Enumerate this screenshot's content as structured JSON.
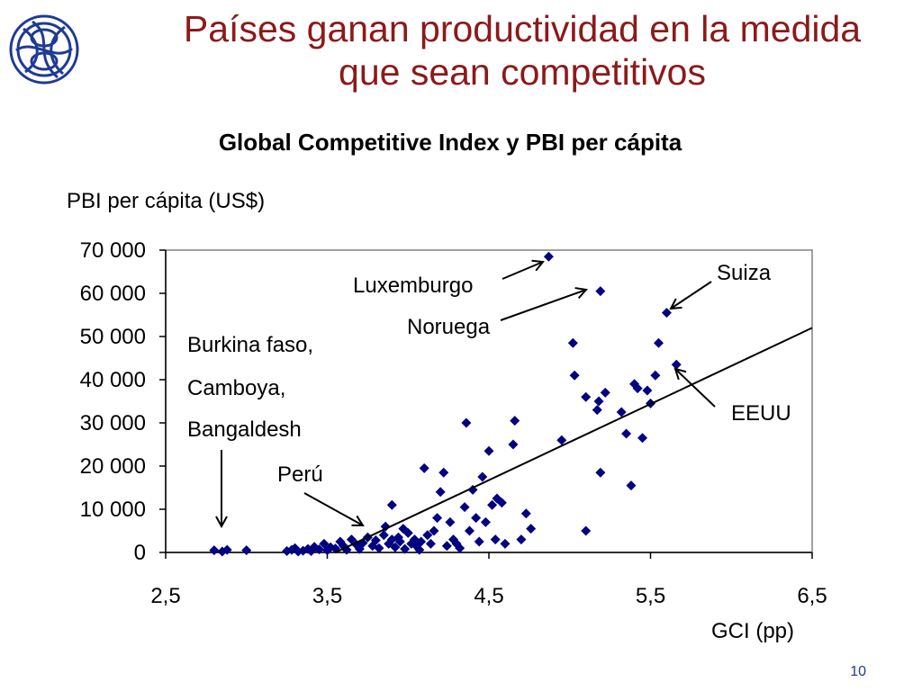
{
  "slide": {
    "title_line1": "Países ganan productividad en la medida",
    "title_line2": "que sean competitivos",
    "page_number": "10"
  },
  "logo": {
    "icon": "bank-monogram-logo"
  },
  "chart_data": {
    "type": "scatter",
    "title": "Global Competitive Index y PBI per cápita",
    "ylabel": "PBI per cápita (US$)",
    "xlabel": "GCI (pp)",
    "xlim": [
      2.5,
      6.5
    ],
    "ylim": [
      0,
      70000
    ],
    "x_ticks": [
      "2,5",
      "3,5",
      "4,5",
      "5,5",
      "6,5"
    ],
    "y_ticks": [
      "0",
      "10 000",
      "20 000",
      "30 000",
      "40 000",
      "50 000",
      "60 000",
      "70 000"
    ],
    "marker_color": "#000080",
    "trendline": {
      "start": [
        3.55,
        0
      ],
      "end": [
        6.5,
        52000
      ]
    },
    "annotations": {
      "burkina": [
        "Burkina faso,",
        "Camboya,",
        "Bangaldesh"
      ],
      "peru": "Perú",
      "luxemburgo": "Luxemburgo",
      "noruega": "Noruega",
      "suiza": "Suiza",
      "eeuu": "EEUU"
    },
    "points": [
      [
        2.8,
        500
      ],
      [
        2.85,
        200
      ],
      [
        2.88,
        600
      ],
      [
        3.0,
        500
      ],
      [
        3.25,
        300
      ],
      [
        3.28,
        600
      ],
      [
        3.3,
        1000
      ],
      [
        3.32,
        200
      ],
      [
        3.35,
        400
      ],
      [
        3.38,
        800
      ],
      [
        3.4,
        300
      ],
      [
        3.42,
        1300
      ],
      [
        3.45,
        700
      ],
      [
        3.48,
        2000
      ],
      [
        3.5,
        500
      ],
      [
        3.52,
        1200
      ],
      [
        3.55,
        900
      ],
      [
        3.58,
        2500
      ],
      [
        3.6,
        1500
      ],
      [
        3.62,
        600
      ],
      [
        3.65,
        3000
      ],
      [
        3.68,
        1800
      ],
      [
        3.7,
        800
      ],
      [
        3.72,
        2200
      ],
      [
        3.75,
        3500
      ],
      [
        3.78,
        1500
      ],
      [
        3.8,
        2800
      ],
      [
        3.82,
        1000
      ],
      [
        3.85,
        4000
      ],
      [
        3.86,
        6000
      ],
      [
        3.88,
        2000
      ],
      [
        3.9,
        11000
      ],
      [
        3.9,
        3000
      ],
      [
        3.92,
        1200
      ],
      [
        3.94,
        3500
      ],
      [
        3.95,
        2500
      ],
      [
        3.97,
        5500
      ],
      [
        3.98,
        800
      ],
      [
        4.0,
        4500
      ],
      [
        4.02,
        2000
      ],
      [
        4.04,
        3000
      ],
      [
        4.05,
        1500
      ],
      [
        4.07,
        600
      ],
      [
        4.08,
        2500
      ],
      [
        4.1,
        19500
      ],
      [
        4.12,
        4000
      ],
      [
        4.14,
        2000
      ],
      [
        4.16,
        5000
      ],
      [
        4.18,
        8000
      ],
      [
        4.2,
        14000
      ],
      [
        4.22,
        18500
      ],
      [
        4.24,
        1500
      ],
      [
        4.26,
        7000
      ],
      [
        4.28,
        3000
      ],
      [
        4.3,
        2000
      ],
      [
        4.32,
        1000
      ],
      [
        4.35,
        10500
      ],
      [
        4.36,
        30000
      ],
      [
        4.38,
        5000
      ],
      [
        4.4,
        14500
      ],
      [
        4.42,
        8000
      ],
      [
        4.44,
        2500
      ],
      [
        4.46,
        17500
      ],
      [
        4.48,
        7000
      ],
      [
        4.5,
        23500
      ],
      [
        4.52,
        11000
      ],
      [
        4.54,
        3000
      ],
      [
        4.55,
        12500
      ],
      [
        4.58,
        11500
      ],
      [
        4.6,
        2000
      ],
      [
        4.65,
        25000
      ],
      [
        4.66,
        30500
      ],
      [
        4.7,
        3000
      ],
      [
        4.73,
        9000
      ],
      [
        4.76,
        5500
      ],
      [
        4.87,
        68500
      ],
      [
        4.95,
        26000
      ],
      [
        5.02,
        48500
      ],
      [
        5.03,
        41000
      ],
      [
        5.1,
        36000
      ],
      [
        5.1,
        5000
      ],
      [
        5.17,
        33000
      ],
      [
        5.18,
        35000
      ],
      [
        5.19,
        60500
      ],
      [
        5.19,
        18500
      ],
      [
        5.22,
        37000
      ],
      [
        5.32,
        32500
      ],
      [
        5.35,
        27500
      ],
      [
        5.38,
        15500
      ],
      [
        5.4,
        39000
      ],
      [
        5.42,
        38000
      ],
      [
        5.45,
        26500
      ],
      [
        5.48,
        37500
      ],
      [
        5.5,
        34500
      ],
      [
        5.53,
        41000
      ],
      [
        5.55,
        48500
      ],
      [
        5.6,
        55500
      ],
      [
        5.66,
        43500
      ]
    ]
  }
}
